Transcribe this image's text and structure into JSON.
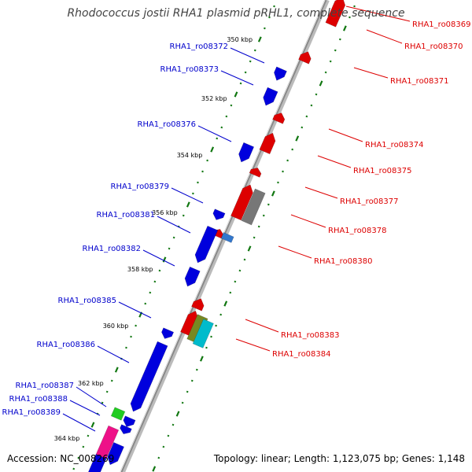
{
  "title": "Rhodococcus jostii RHA1 plasmid pRHL1, complete sequence",
  "footer": {
    "accession": "Accession: NC_008269",
    "topology": "Topology: linear; Length: 1,123,075 bp; Genes: 1,148"
  },
  "colors": {
    "forward_gene": "#0000dd",
    "reverse_gene": "#dd0000",
    "gc_dots": "#117711",
    "axis": "#999999"
  },
  "kbp_ticks": [
    "350 kbp",
    "352 kbp",
    "354 kbp",
    "356 kbp",
    "358 kbp",
    "360 kbp",
    "362 kbp",
    "364 kbp"
  ],
  "left_labels": [
    "RHA1_ro08372",
    "RHA1_ro08373",
    "RHA1_ro08376",
    "RHA1_ro08379",
    "RHA1_ro08381",
    "RHA1_ro08382",
    "RHA1_ro08385",
    "RHA1_ro08386",
    "RHA1_ro08387",
    "RHA1_ro08388",
    "RHA1_ro08389"
  ],
  "right_labels": [
    "RHA1_ro08369",
    "RHA1_ro08370",
    "RHA1_ro08371",
    "RHA1_ro08374",
    "RHA1_ro08375",
    "RHA1_ro08377",
    "RHA1_ro08378",
    "RHA1_ro08380",
    "RHA1_ro08383",
    "RHA1_ro08384"
  ]
}
